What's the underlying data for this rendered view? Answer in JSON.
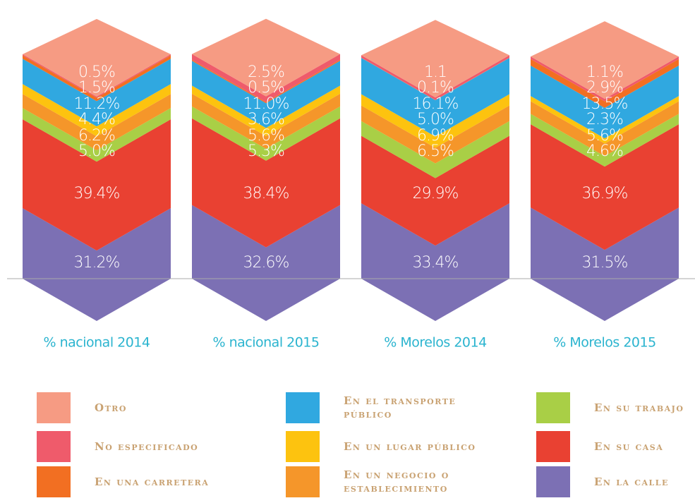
{
  "chart_data": {
    "type": "stacked-chevron",
    "categories": [
      "% nacional 2014",
      "% nacional 2015",
      "% Morelos 2014",
      "% Morelos 2015"
    ],
    "series": [
      {
        "name": "En la calle",
        "color": "#7c70b4",
        "values": [
          31.2,
          32.6,
          33.4,
          31.5
        ],
        "value_labels": [
          "31.2%",
          "32.6%",
          "33.4%",
          "31.5%"
        ]
      },
      {
        "name": "En su casa",
        "color": "#e94132",
        "values": [
          39.4,
          38.4,
          29.9,
          36.9
        ],
        "value_labels": [
          "39.4%",
          "38.4%",
          "29.9%",
          "36.9%"
        ]
      },
      {
        "name": "En su trabajo",
        "color": "#a9cf46",
        "values": [
          5.0,
          5.3,
          6.5,
          4.6
        ],
        "value_labels": [
          "5.0%",
          "5.3%",
          "6.5%",
          "4.6%"
        ]
      },
      {
        "name": "En un negocio o establecimiento",
        "color": "#f5962a",
        "values": [
          6.2,
          5.6,
          6.9,
          5.6
        ],
        "value_labels": [
          "6.2%",
          "5.6%",
          "6.9%",
          "5.6%"
        ]
      },
      {
        "name": "En un lugar público",
        "color": "#fdc30f",
        "values": [
          4.4,
          3.6,
          5.0,
          2.3
        ],
        "value_labels": [
          "4.4%",
          "3.6%",
          "5.0%",
          "2.3%"
        ]
      },
      {
        "name": "En el transporte público",
        "color": "#30a8e0",
        "values": [
          11.2,
          11.0,
          16.1,
          13.5
        ],
        "value_labels": [
          "11.2%",
          "11.0%",
          "16.1%",
          "13.5%"
        ]
      },
      {
        "name": "En una carretera",
        "color": "#f26f22",
        "values": [
          1.5,
          0.5,
          0.1,
          2.9
        ],
        "value_labels": [
          "1.5%",
          "0.5%",
          "0.1%",
          "2.9%"
        ]
      },
      {
        "name": "No especificado",
        "color": "#ef5b6b",
        "values": [
          0.5,
          2.5,
          1.1,
          1.1
        ],
        "value_labels": [
          "0.5%",
          "2.5%",
          "1.1",
          "1.1%"
        ]
      },
      {
        "name": "Otro",
        "color": "#f69b83",
        "values": [
          null,
          null,
          null,
          null
        ]
      }
    ],
    "legend_order": [
      8,
      7,
      6,
      5,
      4,
      3,
      2,
      1,
      0
    ]
  }
}
